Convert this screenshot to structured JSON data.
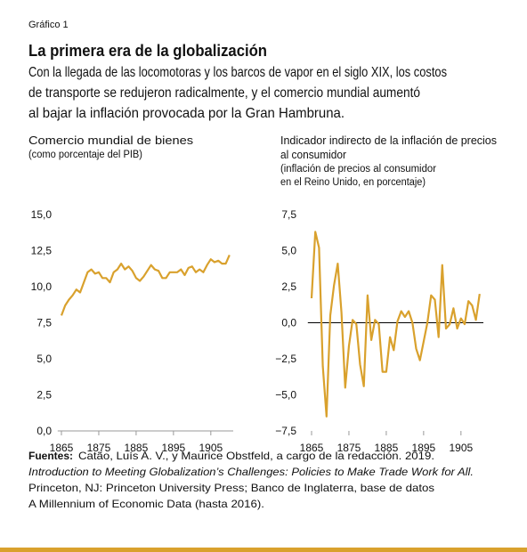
{
  "label": "Gráfico 1",
  "title": "La primera era de la globalización",
  "subtitle": [
    "Con la llegada de las locomotoras y los barcos de vapor en el siglo XIX, los costos",
    "de transporte se redujeron radicalmente, y el comercio mundial aumentó",
    "al bajar la inflación provocada por la Gran Hambruna."
  ],
  "chart_data": [
    {
      "type": "line",
      "title": [
        "Comercio mundial de bienes"
      ],
      "subtitle": [
        "(como porcentaje del PIB)"
      ],
      "x": [
        1865,
        1866,
        1867,
        1868,
        1869,
        1870,
        1871,
        1872,
        1873,
        1874,
        1875,
        1876,
        1877,
        1878,
        1879,
        1880,
        1881,
        1882,
        1883,
        1884,
        1885,
        1886,
        1887,
        1888,
        1889,
        1890,
        1891,
        1892,
        1893,
        1894,
        1895,
        1896,
        1897,
        1898,
        1899,
        1900,
        1901,
        1902,
        1903,
        1904,
        1905,
        1906,
        1907,
        1908,
        1909,
        1910
      ],
      "values": [
        8.0,
        8.7,
        9.1,
        9.4,
        9.8,
        9.6,
        10.3,
        11.0,
        11.2,
        10.9,
        11.0,
        10.6,
        10.6,
        10.3,
        11.0,
        11.2,
        11.6,
        11.2,
        11.4,
        11.1,
        10.6,
        10.4,
        10.7,
        11.1,
        11.5,
        11.2,
        11.1,
        10.6,
        10.6,
        11.0,
        11.0,
        11.0,
        11.2,
        10.8,
        11.3,
        11.4,
        11.0,
        11.2,
        11.0,
        11.5,
        11.9,
        11.7,
        11.8,
        11.6,
        11.6,
        12.2
      ],
      "color": "#d9a12d",
      "xlim": [
        1864,
        1911
      ],
      "xticks": [
        1865,
        1875,
        1885,
        1895,
        1905
      ],
      "ylim": [
        0,
        15
      ],
      "yticks": [
        {
          "value": 0,
          "label": "0,0"
        },
        {
          "value": 2.5,
          "label": "2,5"
        },
        {
          "value": 5,
          "label": "5,0"
        },
        {
          "value": 7.5,
          "label": "7,5"
        },
        {
          "value": 10,
          "label": "10,0"
        },
        {
          "value": 12.5,
          "label": "12,5"
        },
        {
          "value": 15,
          "label": "15,0"
        }
      ],
      "zero_line": true,
      "zero_line_color": "#999999"
    },
    {
      "type": "line",
      "title": [
        "Indicador indirecto de la inflación de precios",
        "al consumidor"
      ],
      "subtitle": [
        "(inflación de precios al consumidor",
        "en el Reino Unido, en porcentaje)"
      ],
      "x": [
        1865,
        1866,
        1867,
        1868,
        1869,
        1870,
        1871,
        1872,
        1873,
        1874,
        1875,
        1876,
        1877,
        1878,
        1879,
        1880,
        1881,
        1882,
        1883,
        1884,
        1885,
        1886,
        1887,
        1888,
        1889,
        1890,
        1891,
        1892,
        1893,
        1894,
        1895,
        1896,
        1897,
        1898,
        1899,
        1900,
        1901,
        1902,
        1903,
        1904,
        1905,
        1906,
        1907,
        1908,
        1909,
        1910
      ],
      "values": [
        1.7,
        6.3,
        5.2,
        -3.0,
        -6.5,
        0.5,
        2.6,
        4.1,
        0.7,
        -4.5,
        -1.6,
        0.2,
        -0.1,
        -2.9,
        -4.4,
        1.9,
        -1.2,
        0.2,
        -0.1,
        -3.4,
        -3.4,
        -1.0,
        -1.9,
        0.1,
        0.8,
        0.4,
        0.8,
        0.0,
        -1.8,
        -2.6,
        -1.3,
        0.0,
        1.9,
        1.6,
        -1.0,
        4.0,
        -0.4,
        -0.1,
        1.0,
        -0.4,
        0.3,
        -0.1,
        1.5,
        1.2,
        0.2,
        2.0
      ],
      "color": "#d9a12d",
      "xlim": [
        1864,
        1911
      ],
      "xticks": [
        1865,
        1875,
        1885,
        1895,
        1905
      ],
      "ylim": [
        -7.5,
        7.5
      ],
      "yticks": [
        {
          "value": -7.5,
          "label": "−7,5"
        },
        {
          "value": -5,
          "label": "−5,0"
        },
        {
          "value": -2.5,
          "label": "−2,5"
        },
        {
          "value": 0,
          "label": "0,0"
        },
        {
          "value": 2.5,
          "label": "2,5"
        },
        {
          "value": 5,
          "label": "5,0"
        },
        {
          "value": 7.5,
          "label": "7,5"
        }
      ],
      "zero_line": true,
      "zero_line_color": "#000000"
    }
  ],
  "sources": {
    "label": "Fuentes:",
    "lines": [
      " Catão, Luís A. V., y Maurice Obstfeld, a cargo de la redacción. 2019.",
      "Introduction to Meeting Globalization’s Challenges: Policies to Make Trade Work for All.",
      "Princeton, NJ: Princeton University Press; Banco de Inglaterra, base de datos",
      "A Millennium of Economic Data (hasta 2016)."
    ]
  }
}
